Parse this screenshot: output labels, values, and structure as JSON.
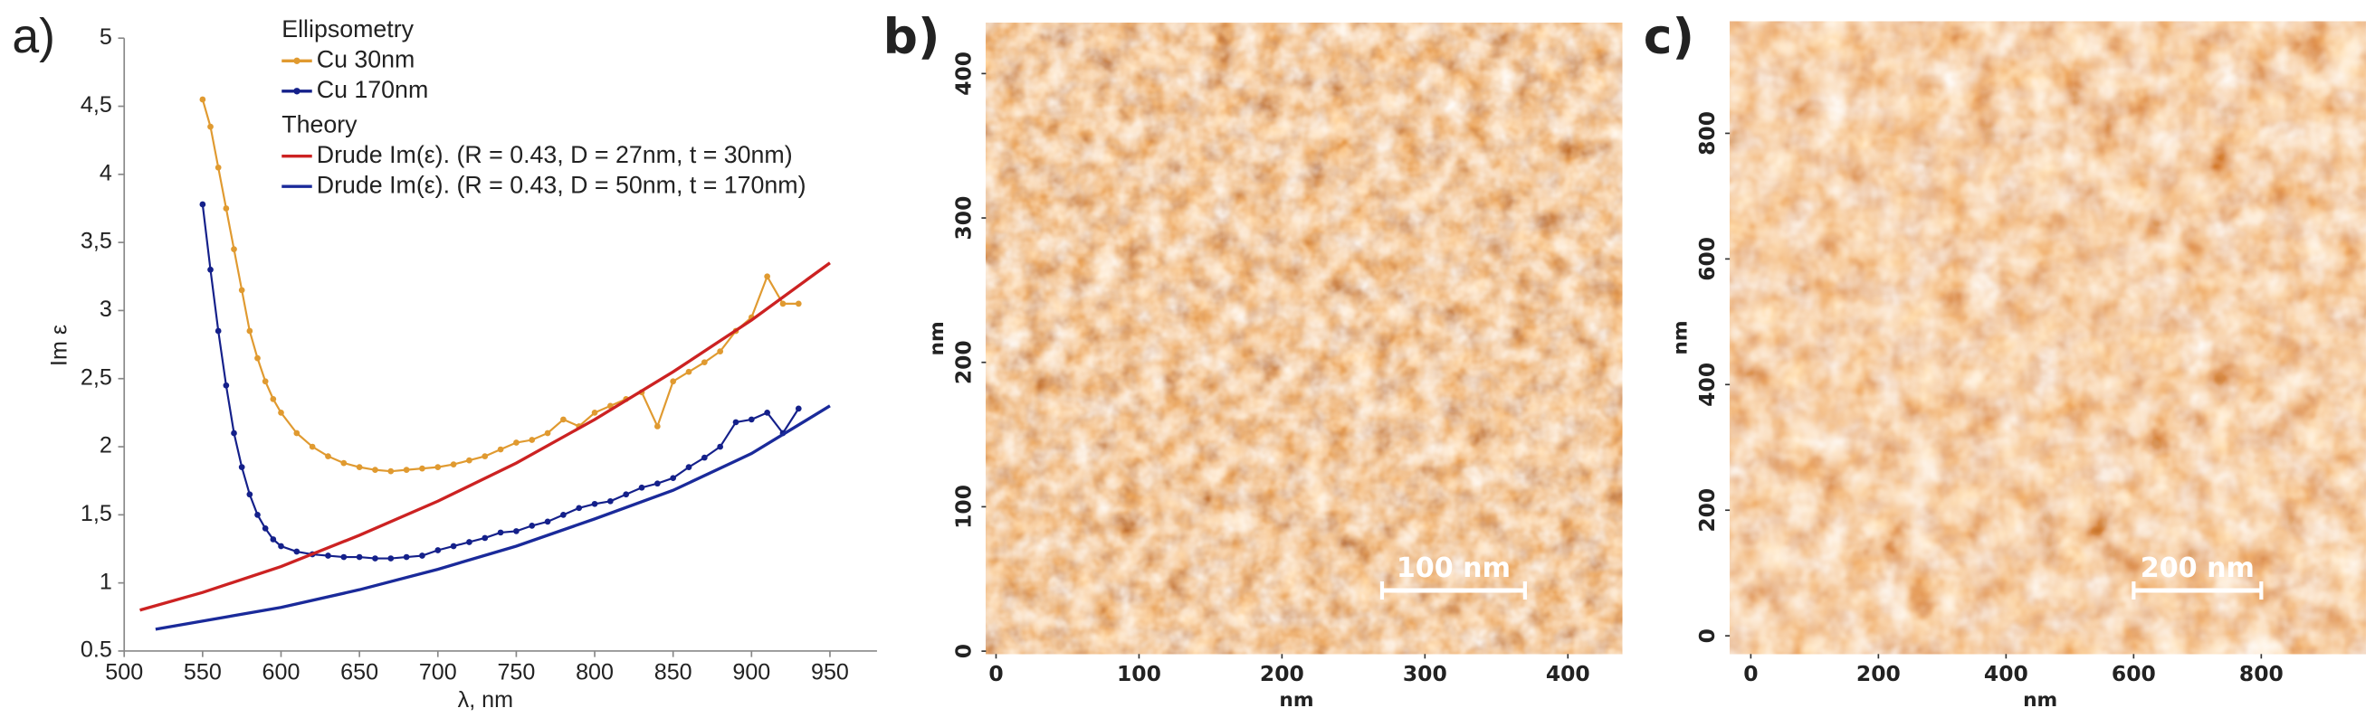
{
  "chart_data": [
    {
      "type": "line",
      "label": "a)",
      "xlabel": "λ, nm",
      "ylabel": "Im ε",
      "xlim": [
        500,
        980
      ],
      "xticks": [
        500,
        550,
        600,
        650,
        700,
        750,
        800,
        850,
        900,
        950
      ],
      "ylim": [
        0.5,
        5
      ],
      "yticks": [
        {
          "value": 0.5,
          "label": "0.5"
        },
        1,
        {
          "value": 1.5,
          "label": "1,5"
        },
        2,
        {
          "value": 2.5,
          "label": "2,5"
        },
        3,
        {
          "value": 3.5,
          "label": "3,5"
        },
        4,
        {
          "value": 4.5,
          "label": "4,5"
        },
        5
      ],
      "series_groups": [
        {
          "title": "Ellipsometry",
          "markers": true,
          "series": [
            {
              "name": "Cu 30nm",
              "color": "#e09a30",
              "x": [
                550,
                555,
                560,
                565,
                570,
                575,
                580,
                585,
                590,
                595,
                600,
                610,
                620,
                630,
                640,
                650,
                660,
                670,
                680,
                690,
                700,
                710,
                720,
                730,
                740,
                750,
                760,
                770,
                780,
                790,
                800,
                810,
                820,
                830,
                840,
                850,
                860,
                870,
                880,
                890,
                900,
                910,
                920,
                930
              ],
              "values": [
                4.55,
                4.35,
                4.05,
                3.75,
                3.45,
                3.15,
                2.85,
                2.65,
                2.48,
                2.35,
                2.25,
                2.1,
                2.0,
                1.93,
                1.88,
                1.85,
                1.83,
                1.82,
                1.83,
                1.84,
                1.85,
                1.87,
                1.9,
                1.93,
                1.98,
                2.03,
                2.05,
                2.1,
                2.2,
                2.15,
                2.25,
                2.3,
                2.35,
                2.4,
                2.15,
                2.48,
                2.55,
                2.62,
                2.7,
                2.85,
                2.95,
                3.25,
                3.05,
                3.05
              ]
            },
            {
              "name": "Cu 170nm",
              "color": "#14208a",
              "x": [
                550,
                555,
                560,
                565,
                570,
                575,
                580,
                585,
                590,
                595,
                600,
                610,
                620,
                630,
                640,
                650,
                660,
                670,
                680,
                690,
                700,
                710,
                720,
                730,
                740,
                750,
                760,
                770,
                780,
                790,
                800,
                810,
                820,
                830,
                840,
                850,
                860,
                870,
                880,
                890,
                900,
                910,
                920,
                930
              ],
              "values": [
                3.78,
                3.3,
                2.85,
                2.45,
                2.1,
                1.85,
                1.65,
                1.5,
                1.4,
                1.32,
                1.27,
                1.23,
                1.21,
                1.2,
                1.19,
                1.19,
                1.18,
                1.18,
                1.19,
                1.2,
                1.24,
                1.27,
                1.3,
                1.33,
                1.37,
                1.38,
                1.42,
                1.45,
                1.5,
                1.55,
                1.58,
                1.6,
                1.65,
                1.7,
                1.73,
                1.77,
                1.85,
                1.92,
                2.0,
                2.18,
                2.2,
                2.25,
                2.1,
                2.28
              ]
            }
          ]
        },
        {
          "title": "Theory",
          "markers": false,
          "series": [
            {
              "name": "Drude Im(ε). (R = 0.43, D = 27nm, t = 30nm)",
              "color": "#cc2222",
              "x": [
                510,
                550,
                600,
                650,
                700,
                750,
                800,
                850,
                900,
                950
              ],
              "values": [
                0.8,
                0.93,
                1.12,
                1.35,
                1.6,
                1.88,
                2.2,
                2.55,
                2.93,
                3.35
              ]
            },
            {
              "name": "Drude Im(ε). (R = 0.43, D = 50nm, t = 170nm)",
              "color": "#1a2a9a",
              "x": [
                520,
                600,
                650,
                700,
                750,
                800,
                850,
                900,
                950
              ],
              "values": [
                0.66,
                0.82,
                0.95,
                1.1,
                1.27,
                1.47,
                1.68,
                1.95,
                2.3
              ]
            }
          ]
        }
      ]
    },
    {
      "type": "image",
      "label": "b)",
      "xlabel": "nm",
      "ylabel": "nm",
      "xlim": [
        -7,
        438
      ],
      "xticks": [
        0,
        100,
        200,
        300,
        400
      ],
      "ylim": [
        -2,
        435
      ],
      "yticks": [
        0,
        100,
        200,
        300,
        400
      ],
      "scale_bar": {
        "start": 270,
        "length": 100,
        "label": "100 nm"
      }
    },
    {
      "type": "image",
      "label": "c)",
      "xlabel": "nm",
      "ylabel": "nm",
      "xlim": [
        -33,
        964
      ],
      "xticks": [
        0,
        200,
        400,
        600,
        800
      ],
      "ylim": [
        -29,
        978
      ],
      "yticks": [
        0,
        200,
        400,
        600,
        800
      ],
      "scale_bar": {
        "start": 600,
        "length": 200,
        "label": "200 nm"
      }
    }
  ]
}
